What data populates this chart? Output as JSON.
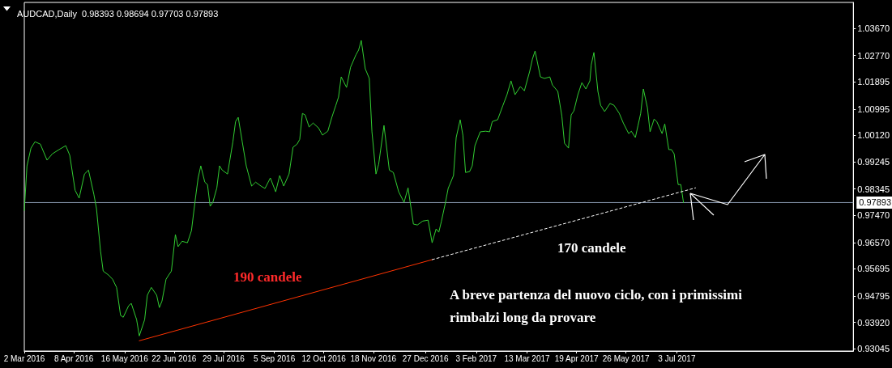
{
  "chart_data": {
    "type": "line",
    "title": "AUDCAD,Daily  0.98393 0.98694 0.97703 0.97893",
    "x": [
      "2016-03-02",
      "2016-03-04",
      "2016-03-07",
      "2016-03-10",
      "2016-03-14",
      "2016-03-19",
      "2016-03-23",
      "2016-03-28",
      "2016-04-02",
      "2016-04-05",
      "2016-04-09",
      "2016-04-12",
      "2016-04-16",
      "2016-04-19",
      "2016-04-23",
      "2016-04-25",
      "2016-04-28",
      "2016-04-30",
      "2016-05-04",
      "2016-05-07",
      "2016-05-10",
      "2016-05-13",
      "2016-05-15",
      "2016-05-19",
      "2016-05-21",
      "2016-05-25",
      "2016-05-27",
      "2016-05-31",
      "2016-06-02",
      "2016-06-05",
      "2016-06-09",
      "2016-06-11",
      "2016-06-13",
      "2016-06-16",
      "2016-06-18",
      "2016-06-20",
      "2016-06-23",
      "2016-06-25",
      "2016-06-28",
      "2016-07-02",
      "2016-07-05",
      "2016-07-08",
      "2016-07-10",
      "2016-07-12",
      "2016-07-15",
      "2016-07-17",
      "2016-07-19",
      "2016-07-21",
      "2016-07-24",
      "2016-07-26",
      "2016-07-28",
      "2016-08-01",
      "2016-08-05",
      "2016-08-07",
      "2016-08-09",
      "2016-08-12",
      "2016-08-15",
      "2016-08-19",
      "2016-08-22",
      "2016-08-26",
      "2016-08-29",
      "2016-09-02",
      "2016-09-06",
      "2016-09-09",
      "2016-09-12",
      "2016-09-16",
      "2016-09-19",
      "2016-09-22",
      "2016-09-24",
      "2016-09-26",
      "2016-09-28",
      "2016-10-01",
      "2016-10-04",
      "2016-10-08",
      "2016-10-11",
      "2016-10-15",
      "2016-10-18",
      "2016-10-21",
      "2016-10-23",
      "2016-10-25",
      "2016-10-29",
      "2016-11-01",
      "2016-11-05",
      "2016-11-07",
      "2016-11-09",
      "2016-11-12",
      "2016-11-15",
      "2016-11-17",
      "2016-11-20",
      "2016-11-22",
      "2016-11-26",
      "2016-11-30",
      "2016-12-03",
      "2016-12-07",
      "2016-12-11",
      "2016-12-14",
      "2016-12-18",
      "2016-12-21",
      "2016-12-25",
      "2016-12-29",
      "2017-01-01",
      "2017-01-04",
      "2017-01-06",
      "2017-01-08",
      "2017-01-11",
      "2017-01-13",
      "2017-01-17",
      "2017-01-19",
      "2017-01-22",
      "2017-01-24",
      "2017-01-26",
      "2017-01-29",
      "2017-01-31",
      "2017-02-02",
      "2017-02-06",
      "2017-02-10",
      "2017-02-13",
      "2017-02-15",
      "2017-02-19",
      "2017-02-23",
      "2017-02-26",
      "2017-03-01",
      "2017-03-04",
      "2017-03-08",
      "2017-03-11",
      "2017-03-15",
      "2017-03-17",
      "2017-03-19",
      "2017-03-23",
      "2017-03-26",
      "2017-03-30",
      "2017-04-01",
      "2017-04-05",
      "2017-04-08",
      "2017-04-10",
      "2017-04-13",
      "2017-04-15",
      "2017-04-17",
      "2017-04-20",
      "2017-04-23",
      "2017-04-26",
      "2017-04-29",
      "2017-04-30",
      "2017-05-02",
      "2017-05-05",
      "2017-05-07",
      "2017-05-10",
      "2017-05-14",
      "2017-05-17",
      "2017-05-21",
      "2017-05-24",
      "2017-05-28",
      "2017-05-30",
      "2017-06-02",
      "2017-06-04",
      "2017-06-06",
      "2017-06-08",
      "2017-06-11",
      "2017-06-13",
      "2017-06-16",
      "2017-06-18",
      "2017-06-22",
      "2017-06-24",
      "2017-06-27",
      "2017-06-29",
      "2017-07-01",
      "2017-07-04",
      "2017-07-06",
      "2017-07-08"
    ],
    "series": [
      {
        "color": "#32cd32",
        "values": [
          0.9763,
          0.9911,
          0.997,
          0.9991,
          0.9983,
          0.993,
          0.9951,
          0.9965,
          0.9978,
          0.9946,
          0.983,
          0.9804,
          0.9884,
          0.9897,
          0.9817,
          0.9769,
          0.9629,
          0.9562,
          0.9549,
          0.9535,
          0.9508,
          0.9415,
          0.9409,
          0.9447,
          0.9455,
          0.9401,
          0.9347,
          0.9401,
          0.9482,
          0.9508,
          0.9482,
          0.9441,
          0.9463,
          0.9535,
          0.9549,
          0.9562,
          0.9683,
          0.9643,
          0.9661,
          0.9656,
          0.9696,
          0.9804,
          0.9871,
          0.9911,
          0.9857,
          0.9849,
          0.9777,
          0.979,
          0.9838,
          0.9911,
          0.9897,
          0.9884,
          0.9991,
          1.0058,
          1.0072,
          0.9991,
          0.9911,
          0.9844,
          0.9857,
          0.9844,
          0.9836,
          0.9871,
          0.9825,
          0.9879,
          0.9844,
          0.9884,
          0.9973,
          0.9983,
          0.9999,
          1.0085,
          1.008,
          1.004,
          1.0053,
          1.0037,
          1.0013,
          1.0026,
          1.0072,
          1.0112,
          1.0139,
          1.0206,
          1.0171,
          1.0238,
          1.0279,
          1.0295,
          1.0327,
          1.0233,
          1.0201,
          1.0024,
          0.9884,
          0.9916,
          1.0045,
          0.9897,
          0.9889,
          0.9825,
          0.979,
          0.9838,
          0.9718,
          0.9715,
          0.9728,
          0.9731,
          0.9656,
          0.9702,
          0.9691,
          0.9728,
          0.979,
          0.9836,
          0.9879,
          1.0005,
          1.0064,
          1.0013,
          0.9889,
          0.9892,
          0.9911,
          0.9978,
          1.0024,
          1.0026,
          1.0024,
          1.0058,
          1.0064,
          1.0112,
          1.0147,
          1.0193,
          1.0147,
          1.0174,
          1.016,
          1.0225,
          1.0265,
          1.0292,
          1.0206,
          1.0201,
          1.0206,
          1.0179,
          1.0158,
          1.0077,
          0.9986,
          0.997,
          1.008,
          1.0093,
          1.0147,
          1.0187,
          1.0166,
          1.0193,
          1.0246,
          1.0287,
          1.0158,
          1.0112,
          1.0091,
          1.0118,
          1.0112,
          1.0085,
          1.0053,
          1.0018,
          1.0026,
          1.0005,
          1.0045,
          1.0085,
          1.0166,
          1.0104,
          1.0024,
          1.0066,
          1.0058,
          1.0018,
          1.005,
          0.9965,
          0.9965,
          0.9951,
          0.9849,
          0.9849,
          0.9789
        ]
      },
      {
        "type": "line",
        "color": "#ff3300",
        "line_style": "solid",
        "x": [
          "2016-05-27",
          "2017-01-01"
        ],
        "values": [
          0.9331,
          0.96
        ]
      },
      {
        "type": "line",
        "color": "#ffffff",
        "line_style": "dashed",
        "x": [
          "2017-01-01",
          "2017-07-17"
        ],
        "values": [
          0.96,
          0.9838
        ]
      }
    ],
    "xlim": [
      "2016-03-02",
      "2017-11-12"
    ],
    "xticks": [
      {
        "value": "2016-03-02",
        "label": "2 Mar 2016"
      },
      {
        "value": "2016-04-08",
        "label": "8 Apr 2016"
      },
      {
        "value": "2016-05-16",
        "label": "16 May 2016"
      },
      {
        "value": "2016-06-22",
        "label": "22 Jun 2016"
      },
      {
        "value": "2016-07-29",
        "label": "29 Jul 2016"
      },
      {
        "value": "2016-09-05",
        "label": "5 Sep 2016"
      },
      {
        "value": "2016-10-12",
        "label": "12 Oct 2016"
      },
      {
        "value": "2016-11-18",
        "label": "18 Nov 2016"
      },
      {
        "value": "2016-12-27",
        "label": "27 Dec 2016"
      },
      {
        "value": "2017-02-03",
        "label": "3 Feb 2017"
      },
      {
        "value": "2017-03-13",
        "label": "13 Mar 2017"
      },
      {
        "value": "2017-04-19",
        "label": "19 Apr 2017"
      },
      {
        "value": "2017-05-26",
        "label": "26 May 2017"
      },
      {
        "value": "2017-07-03",
        "label": "3 Jul 2017"
      }
    ],
    "ylim": [
      0.9297,
      1.0453
    ],
    "yticks": [
      {
        "value": 0.93045,
        "label": "0.93045"
      },
      {
        "value": 0.9392,
        "label": "0.93920"
      },
      {
        "value": 0.94795,
        "label": "0.94795"
      },
      {
        "value": 0.95695,
        "label": "0.95695"
      },
      {
        "value": 0.9657,
        "label": "0.96570"
      },
      {
        "value": 0.9747,
        "label": "0.97470"
      },
      {
        "value": 0.98345,
        "label": "0.98345"
      },
      {
        "value": 0.99245,
        "label": "0.99245"
      },
      {
        "value": 1.0012,
        "label": "1.00120"
      },
      {
        "value": 1.00995,
        "label": "1.00995"
      },
      {
        "value": 1.01895,
        "label": "1.01895"
      },
      {
        "value": 1.0277,
        "label": "1.02770"
      },
      {
        "value": 1.0367,
        "label": "1.03670"
      }
    ],
    "ref_lines": [
      {
        "axis": "y",
        "value": 0.97893,
        "label": "0.97893",
        "color": "#8a9ab0"
      }
    ],
    "annotations": [
      "190 candele",
      "170 candele",
      "A breve partenza del nuovo ciclo, con i primissimi rimbalzi long da provare"
    ],
    "grid": false
  }
}
